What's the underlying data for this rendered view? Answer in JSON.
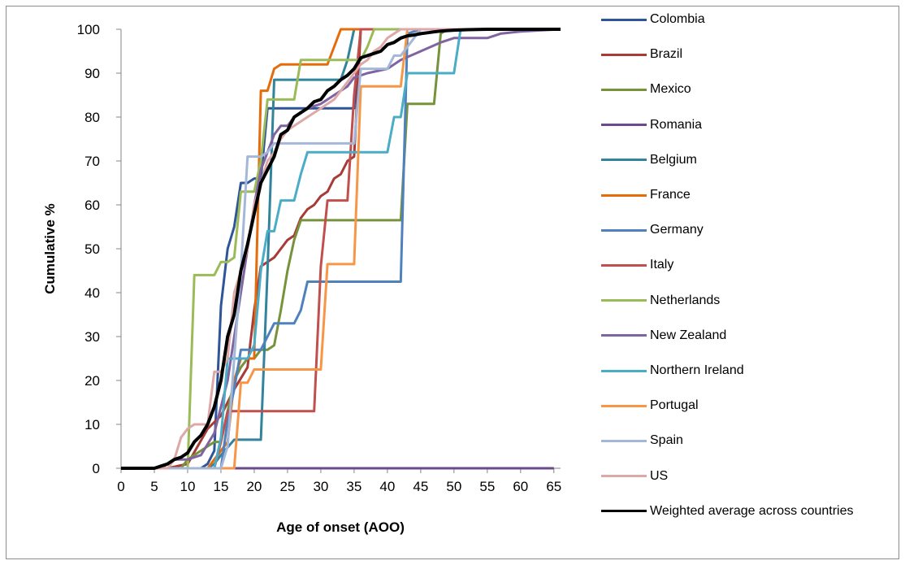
{
  "chart_data": {
    "type": "line",
    "title": "",
    "xlabel": "Age of onset (AOO)",
    "ylabel": "Cumulative %",
    "xlim": [
      0,
      66
    ],
    "ylim": [
      0,
      100
    ],
    "xticks": [
      0,
      5,
      10,
      15,
      20,
      25,
      30,
      35,
      40,
      45,
      50,
      55,
      60,
      65
    ],
    "yticks": [
      0,
      10,
      20,
      30,
      40,
      50,
      60,
      70,
      80,
      90,
      100
    ],
    "grid": false,
    "legend_position": "right",
    "series": [
      {
        "name": "Colombia",
        "color": "#2e5597",
        "x": [
          0,
          12,
          13,
          14,
          15,
          16,
          17,
          18,
          19,
          20,
          21,
          22,
          28,
          29,
          35,
          36,
          66
        ],
        "y": [
          0,
          0,
          1,
          4,
          37,
          50,
          55,
          65,
          65,
          66,
          66,
          82,
          82,
          82,
          82,
          100,
          100
        ]
      },
      {
        "name": "Brazil",
        "color": "#a83a38",
        "x": [
          0,
          7,
          10,
          13,
          15,
          17,
          19,
          20,
          21,
          22,
          23,
          24,
          25,
          26,
          27,
          28,
          29,
          30,
          31,
          32,
          33,
          34,
          35,
          36,
          40,
          45,
          66
        ],
        "y": [
          0,
          0,
          1,
          9,
          12,
          18,
          23,
          36,
          46,
          47,
          48,
          50,
          52,
          53,
          57,
          59,
          60,
          62,
          63,
          66,
          67,
          70,
          71,
          100,
          100,
          100,
          100
        ]
      },
      {
        "name": "Mexico",
        "color": "#76933c",
        "x": [
          0,
          9,
          10,
          11,
          12,
          13,
          14,
          15,
          17,
          18,
          19,
          20,
          21,
          22,
          23,
          24,
          25,
          26,
          27,
          42,
          43,
          47,
          48,
          49,
          66
        ],
        "y": [
          0,
          0,
          2,
          3,
          4,
          5,
          6,
          6,
          20,
          23,
          25,
          25,
          27,
          27,
          28,
          36,
          45,
          52,
          56.5,
          56.5,
          83,
          83,
          99,
          100,
          100
        ]
      },
      {
        "name": "Romania",
        "color": "#6a4a8c",
        "x": [
          0,
          65
        ],
        "y": [
          0,
          0
        ]
      },
      {
        "name": "Belgium",
        "color": "#31849b",
        "x": [
          0,
          13,
          14,
          15,
          17,
          18,
          19,
          20,
          21,
          22,
          23,
          24,
          25,
          26,
          27,
          28,
          29,
          30,
          31,
          32,
          33,
          34,
          35,
          36,
          66
        ],
        "y": [
          0,
          0,
          1,
          3,
          6.5,
          6.5,
          6.5,
          6.5,
          6.5,
          45,
          88.5,
          88.5,
          88.5,
          88.5,
          88.5,
          88.5,
          88.5,
          88.5,
          88.5,
          88.5,
          88.5,
          93,
          100,
          100,
          100
        ]
      },
      {
        "name": "France",
        "color": "#e46c0a",
        "x": [
          0,
          13,
          14,
          16,
          17,
          18,
          19,
          20,
          21,
          22,
          23,
          24,
          25,
          26,
          30,
          31,
          32,
          33,
          34,
          35,
          36,
          66
        ],
        "y": [
          0,
          0,
          2,
          6,
          20,
          25,
          25,
          25,
          86,
          86,
          91,
          92,
          92,
          92,
          92,
          92,
          96,
          100,
          100,
          100,
          100,
          100
        ]
      },
      {
        "name": "Germany",
        "color": "#4f81bd",
        "x": [
          0,
          15,
          16,
          17,
          18,
          19,
          20,
          21,
          22,
          23,
          24,
          25,
          26,
          27,
          28,
          29,
          42,
          43,
          45,
          50,
          66
        ],
        "y": [
          0,
          0,
          11,
          18,
          27,
          27,
          27,
          27,
          30,
          33,
          33,
          33,
          33,
          36,
          42.5,
          42.5,
          42.5,
          99,
          100,
          100,
          100
        ]
      },
      {
        "name": "Italy",
        "color": "#c0504d",
        "x": [
          0,
          14,
          15,
          16,
          17,
          18,
          19,
          28,
          29,
          30,
          31,
          32,
          33,
          34,
          35,
          36,
          40,
          66
        ],
        "y": [
          0,
          0,
          6,
          13,
          13,
          13,
          13,
          13,
          13,
          46,
          61,
          61,
          61,
          61,
          85,
          100,
          100,
          100
        ]
      },
      {
        "name": "Netherlands",
        "color": "#9bbb59",
        "x": [
          0,
          10,
          11,
          12,
          13,
          14,
          15,
          16,
          17,
          18,
          19,
          20,
          21,
          22,
          23,
          24,
          25,
          26,
          27,
          28,
          35,
          36,
          37,
          38,
          39,
          66
        ],
        "y": [
          0,
          0,
          44,
          44,
          44,
          44,
          47,
          47,
          48,
          63,
          63,
          63,
          70,
          84,
          84,
          84,
          84,
          84,
          93,
          93,
          93,
          93,
          96,
          100,
          100,
          100
        ]
      },
      {
        "name": "New Zealand",
        "color": "#8064a2",
        "x": [
          0,
          6,
          7,
          8,
          9,
          10,
          12,
          14,
          16,
          18,
          20,
          21,
          22,
          23,
          24,
          25,
          26,
          27,
          28,
          30,
          32,
          34,
          35,
          37,
          40,
          42,
          45,
          48,
          50,
          55,
          57,
          60,
          66
        ],
        "y": [
          0,
          0,
          1,
          2,
          2,
          2,
          3,
          8,
          20,
          40,
          60,
          68,
          72,
          76,
          78,
          78,
          80,
          81,
          82,
          83,
          85,
          87,
          89,
          90,
          91,
          93,
          95,
          97,
          98,
          98,
          99,
          99.5,
          100
        ]
      },
      {
        "name": "Northern Ireland",
        "color": "#4bacc6",
        "x": [
          0,
          14,
          15,
          16,
          17,
          18,
          19,
          20,
          21,
          22,
          23,
          24,
          25,
          26,
          27,
          28,
          40,
          41,
          42,
          43,
          44,
          45,
          50,
          51,
          66
        ],
        "y": [
          0,
          0,
          7,
          25,
          25,
          25,
          25,
          28,
          45,
          54,
          54,
          61,
          61,
          61,
          67,
          72,
          72,
          80,
          80,
          90,
          90,
          90,
          90,
          100,
          100
        ]
      },
      {
        "name": "Portugal",
        "color": "#f79646",
        "x": [
          0,
          17,
          18,
          19,
          20,
          21,
          30,
          31,
          35,
          36,
          37,
          42,
          43,
          44,
          66
        ],
        "y": [
          0,
          0,
          19.5,
          19.5,
          22.5,
          22.5,
          22.5,
          46.5,
          46.5,
          87,
          87,
          87,
          100,
          100,
          100
        ]
      },
      {
        "name": "Spain",
        "color": "#a5b7d9",
        "x": [
          0,
          15,
          16,
          17,
          18,
          19,
          20,
          21,
          22,
          23,
          24,
          25,
          35,
          36,
          40,
          41,
          42,
          45,
          66
        ],
        "y": [
          0,
          0,
          5,
          25,
          45,
          71,
          71,
          71,
          72,
          74,
          74,
          74,
          74,
          91,
          91,
          94,
          94,
          100,
          100
        ]
      },
      {
        "name": "US",
        "color": "#dda8a8",
        "x": [
          0,
          7,
          8,
          9,
          10,
          11,
          12,
          13,
          14,
          15,
          16,
          17,
          18,
          19,
          20,
          21,
          22,
          23,
          24,
          25,
          26,
          27,
          28,
          29,
          30,
          31,
          32,
          33,
          34,
          35,
          36,
          37,
          38,
          39,
          40,
          41,
          42,
          66
        ],
        "y": [
          0,
          0,
          2,
          7,
          9,
          10,
          10,
          10,
          22,
          22,
          25,
          40,
          45,
          50,
          60,
          65,
          70,
          72,
          75,
          77,
          78,
          79,
          80,
          81,
          82,
          83,
          84,
          86,
          88,
          90,
          92,
          93,
          95,
          96,
          98,
          99,
          100,
          100
        ]
      },
      {
        "name": "Weighted average across countries",
        "color": "#000000",
        "x": [
          0,
          5,
          6,
          7,
          8,
          9,
          10,
          11,
          12,
          13,
          14,
          15,
          16,
          17,
          18,
          19,
          20,
          21,
          22,
          23,
          24,
          25,
          26,
          27,
          28,
          29,
          30,
          31,
          32,
          33,
          34,
          35,
          36,
          37,
          38,
          39,
          40,
          41,
          42,
          43,
          44,
          45,
          46,
          47,
          48,
          49,
          50,
          52,
          55,
          60,
          66
        ],
        "y": [
          0,
          0,
          0.5,
          1,
          2,
          2.5,
          3.5,
          6,
          7.5,
          10,
          14,
          20,
          30,
          35,
          45,
          51,
          58,
          65,
          68,
          71,
          76,
          77,
          80,
          81,
          82,
          83.5,
          84,
          86,
          87,
          88.5,
          89.5,
          91,
          93.5,
          94,
          94.5,
          95,
          96.5,
          97,
          98,
          98.5,
          98.7,
          99,
          99.2,
          99.4,
          99.6,
          99.7,
          99.8,
          99.9,
          100,
          100,
          100
        ]
      }
    ]
  }
}
